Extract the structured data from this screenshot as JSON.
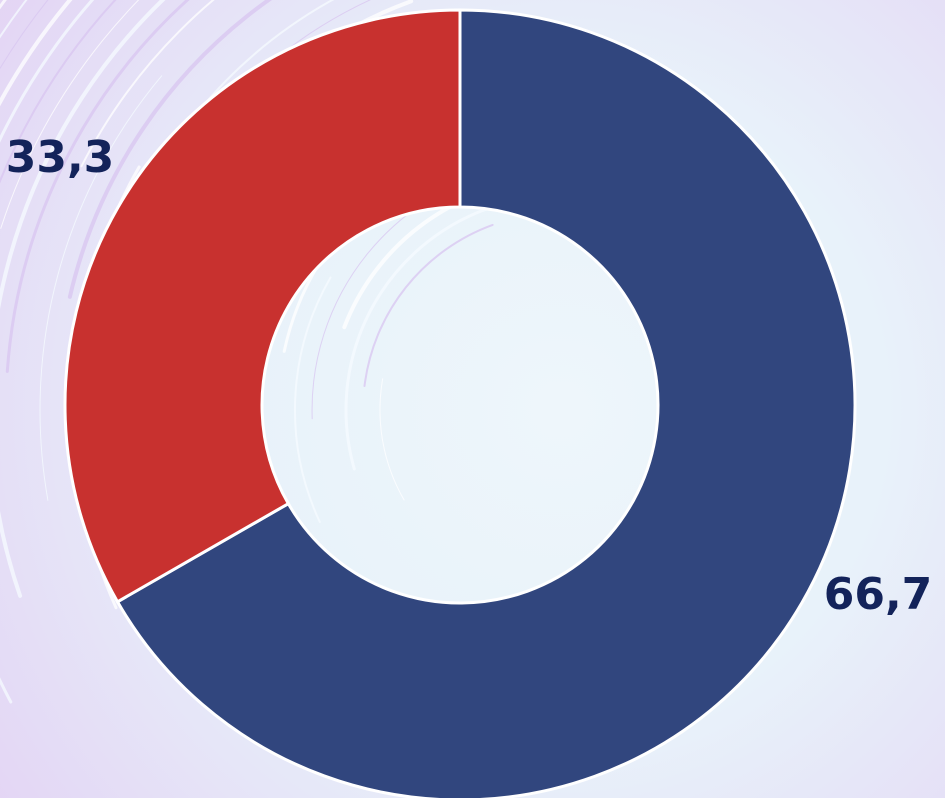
{
  "chart_data": {
    "type": "pie",
    "variant": "donut",
    "slices": [
      {
        "value": 66.7,
        "label": "66,7",
        "color": "#31467e"
      },
      {
        "value": 33.3,
        "label": "33,3",
        "color": "#c8312f"
      }
    ],
    "title": "",
    "legend": "none",
    "label_color": "#13235a",
    "background_color": "#e6d9f6"
  }
}
